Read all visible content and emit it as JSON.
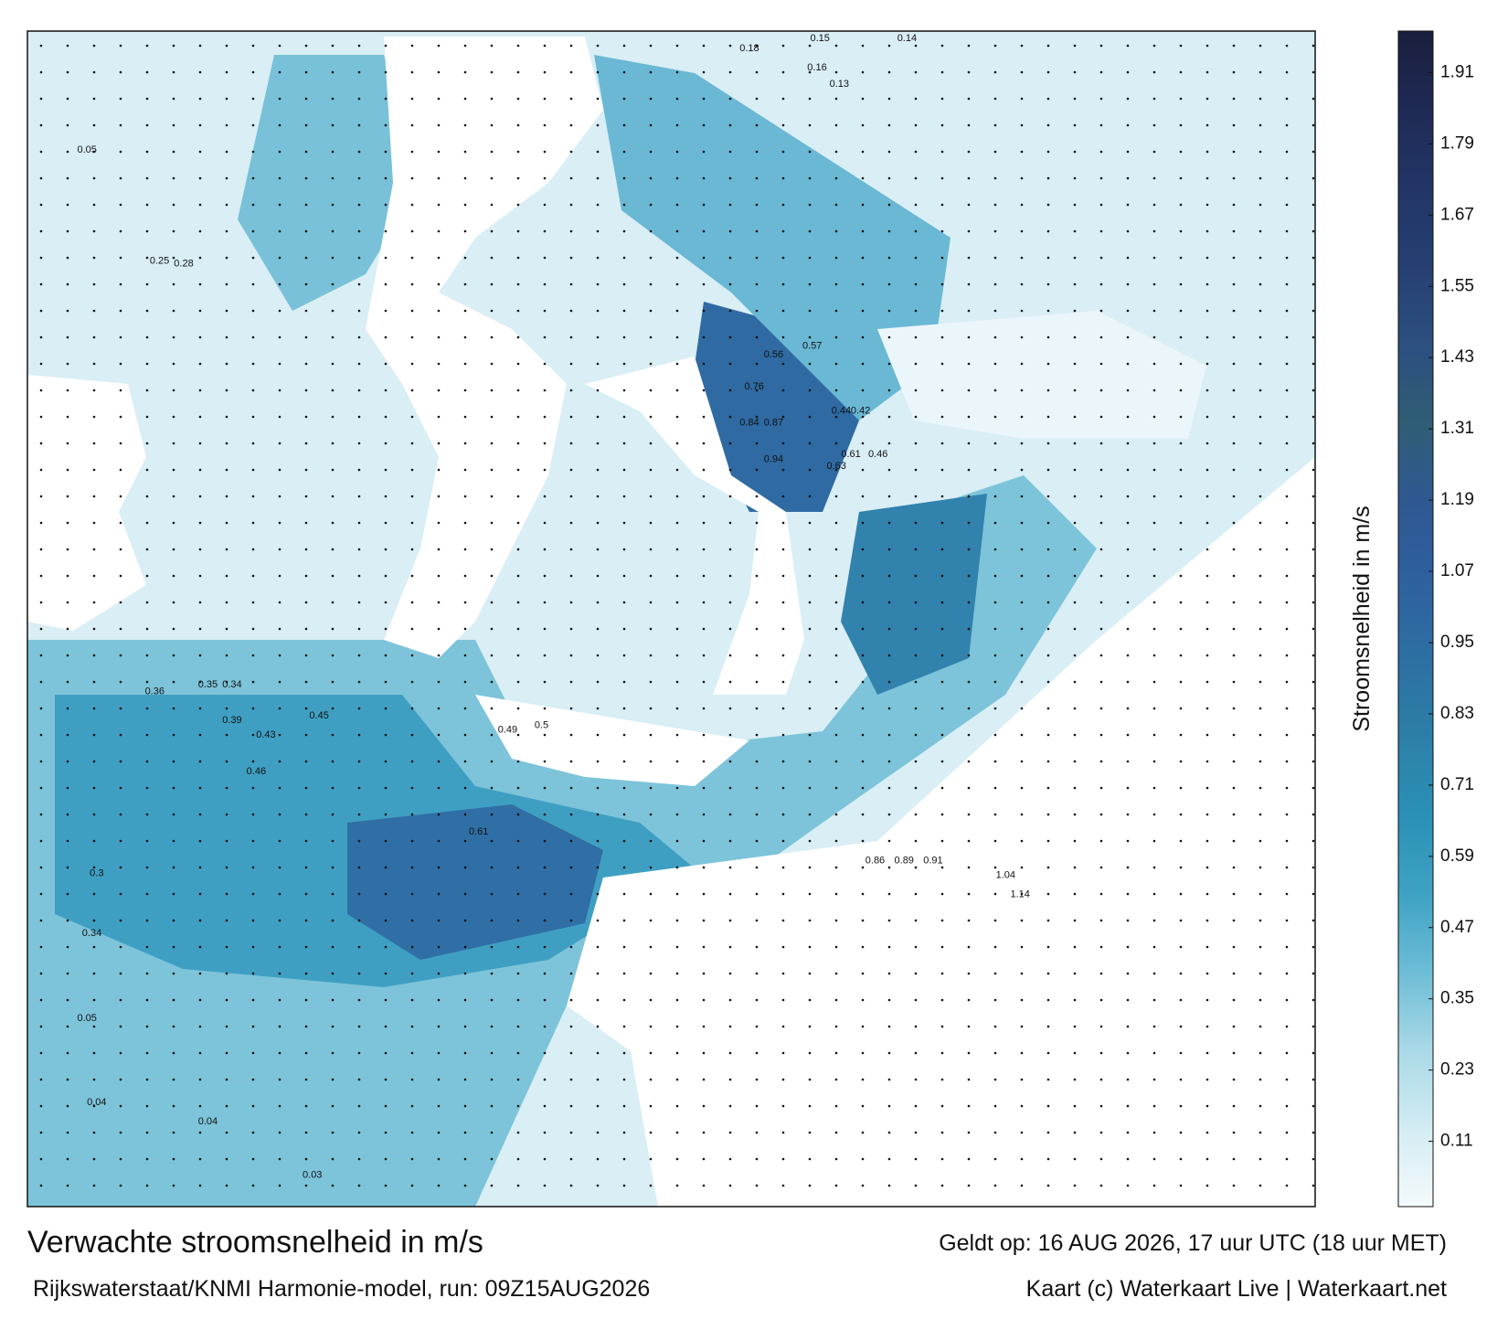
{
  "title": "Verwachte stroomsnelheid in m/s",
  "subtitle": "Rijkswaterstaat/KNMI Harmonie-model, run: 09Z15AUG2026",
  "valid_time": "Geldt op: 16 AUG 2026, 17 uur UTC (18 uur MET)",
  "credit": "Kaart (c) Waterkaart Live | Waterkaart.net",
  "colorbar": {
    "label": "Stroomsnelheid in m/s",
    "lim": [
      0,
      1.98
    ],
    "ticks": [
      0.11,
      0.23,
      0.35,
      0.47,
      0.59,
      0.71,
      0.83,
      0.95,
      1.07,
      1.19,
      1.31,
      1.43,
      1.55,
      1.67,
      1.79,
      1.91
    ],
    "colors": [
      "#f4fafc",
      "#d3ecf3",
      "#a9d9e7",
      "#6dbdd6",
      "#3ea2c4",
      "#2b90b6",
      "#2c7fa8",
      "#2d6fa2",
      "#2e609e",
      "#2f5892",
      "#2f5d74",
      "#2c4f80",
      "#263f72",
      "#223566",
      "#1f2a55",
      "#1a1f3d"
    ]
  },
  "speed_labels": [
    0.76,
    0.84,
    0.87,
    0.94,
    0.63,
    0.61,
    0.46,
    0.44,
    0.42,
    0.57,
    0.56,
    0.5,
    0.49,
    0.45,
    0.43,
    0.46,
    0.39,
    0.36,
    0.35,
    0.34,
    0.3,
    0.34,
    0.18,
    0.15,
    0.14,
    0.16,
    0.13,
    0.28,
    0.25,
    0.04,
    0.04,
    0.03,
    0.05,
    0.05,
    1.04,
    1.14,
    0.86,
    0.89,
    0.91,
    0.61
  ]
}
